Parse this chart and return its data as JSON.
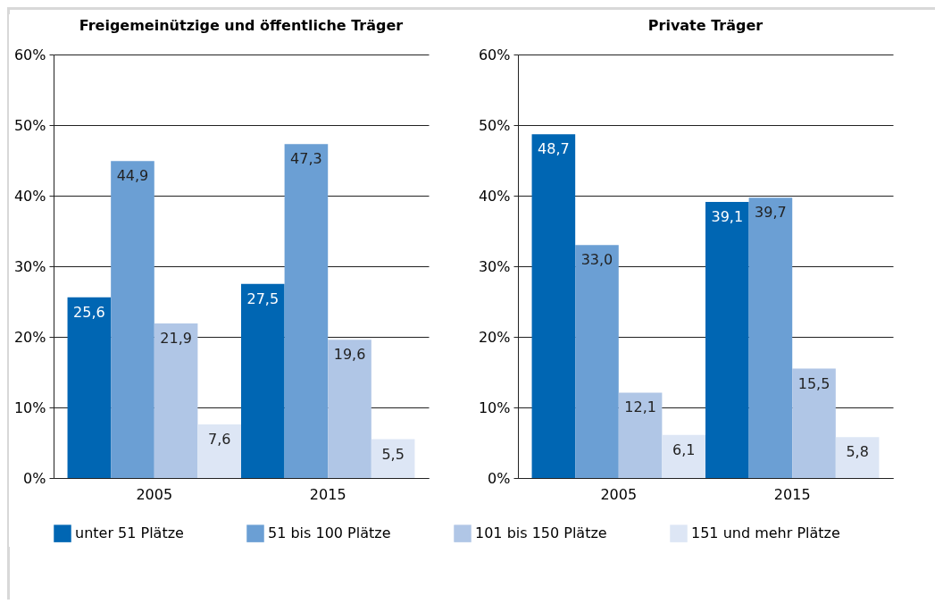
{
  "chart_data": [
    {
      "type": "bar",
      "title": "Freigemeinützige und öffentliche Träger",
      "categories": [
        "2005",
        "2015"
      ],
      "series": [
        {
          "name": "unter 51 Plätze",
          "color": "#0066b3",
          "values": [
            25.6,
            27.5
          ],
          "value_labels": [
            "25,6",
            "27,5"
          ]
        },
        {
          "name": "51 bis 100 Plätze",
          "color": "#6b9fd4",
          "values": [
            44.9,
            47.3
          ],
          "value_labels": [
            "44,9",
            "47,3"
          ]
        },
        {
          "name": "101 bis 150 Plätze",
          "color": "#b0c6e6",
          "values": [
            21.9,
            19.6
          ],
          "value_labels": [
            "21,9",
            "19,6"
          ]
        },
        {
          "name": "151 und mehr Plätze",
          "color": "#dde6f5",
          "values": [
            7.6,
            5.5
          ],
          "value_labels": [
            "7,6",
            "5,5"
          ]
        }
      ],
      "ylim": [
        0,
        60
      ],
      "yticks": [
        {
          "value": 0,
          "label": "0%"
        },
        {
          "value": 10,
          "label": "10%"
        },
        {
          "value": 20,
          "label": "20%"
        },
        {
          "value": 30,
          "label": "30%"
        },
        {
          "value": 40,
          "label": "40%"
        },
        {
          "value": 50,
          "label": "50%"
        },
        {
          "value": 60,
          "label": "60%"
        }
      ],
      "grid": "y",
      "legend": "bottom"
    },
    {
      "type": "bar",
      "title": "Private Träger",
      "categories": [
        "2005",
        "2015"
      ],
      "series": [
        {
          "name": "unter 51 Plätze",
          "color": "#0066b3",
          "values": [
            48.7,
            39.1
          ],
          "value_labels": [
            "48,7",
            "39,1"
          ]
        },
        {
          "name": "51 bis 100 Plätze",
          "color": "#6b9fd4",
          "values": [
            33.0,
            39.7
          ],
          "value_labels": [
            "33,0",
            "39,7"
          ]
        },
        {
          "name": "101 bis 150 Plätze",
          "color": "#b0c6e6",
          "values": [
            12.1,
            15.5
          ],
          "value_labels": [
            "12,1",
            "15,5"
          ]
        },
        {
          "name": "151 und mehr Plätze",
          "color": "#dde6f5",
          "values": [
            6.1,
            5.8
          ],
          "value_labels": [
            "6,1",
            "5,8"
          ]
        }
      ],
      "ylim": [
        0,
        60
      ],
      "yticks": [
        {
          "value": 0,
          "label": "0%"
        },
        {
          "value": 10,
          "label": "10%"
        },
        {
          "value": 20,
          "label": "20%"
        },
        {
          "value": 30,
          "label": "30%"
        },
        {
          "value": 40,
          "label": "40%"
        },
        {
          "value": 50,
          "label": "50%"
        },
        {
          "value": 60,
          "label": "60%"
        }
      ],
      "grid": "y",
      "legend": "bottom"
    }
  ]
}
